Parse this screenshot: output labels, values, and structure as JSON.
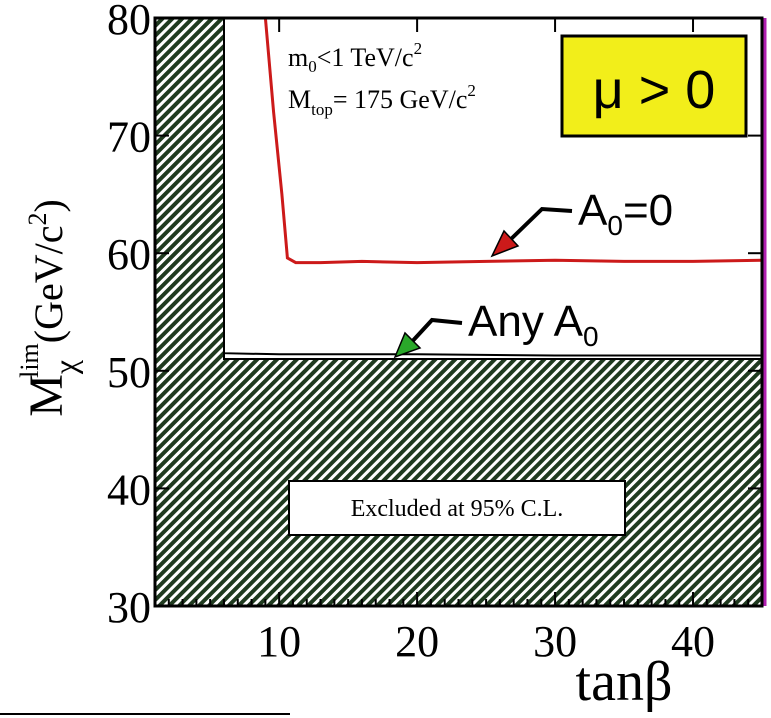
{
  "chart_data": {
    "type": "line",
    "xlabel": "tanβ",
    "ylabel": {
      "base": "M",
      "subscript": "χ",
      "superscript": "lim",
      "unit": "(GeV/c",
      "unit_power": "2",
      "unit_close": ")"
    },
    "xlim": [
      1,
      45
    ],
    "ylim": [
      30,
      80
    ],
    "x_ticks": [
      10,
      20,
      30,
      40
    ],
    "y_ticks": [
      30,
      40,
      50,
      60,
      70,
      80
    ],
    "series": [
      {
        "name": "A0=0",
        "color": "#cc1a1a",
        "x": [
          9.0,
          9.6,
          10.2,
          10.6,
          11.2,
          13,
          16,
          20,
          25,
          30,
          35,
          40,
          45
        ],
        "y": [
          80,
          72,
          65,
          59.6,
          59.2,
          59.2,
          59.3,
          59.2,
          59.3,
          59.4,
          59.3,
          59.3,
          59.4
        ]
      },
      {
        "name": "Any A0",
        "color": "#000000",
        "x": [
          6.0,
          6.0,
          10,
          20,
          30,
          40,
          45
        ],
        "y": [
          80,
          51.5,
          51.4,
          51.4,
          51.3,
          51.3,
          51.3
        ]
      }
    ],
    "excluded_region": {
      "label": "Excluded at 95% C.L.",
      "fill": "#1f3a1f",
      "x": [
        1,
        6.0,
        6.0,
        45,
        45,
        1
      ],
      "y": [
        80,
        80,
        51.0,
        51.0,
        30,
        30
      ]
    },
    "annotations": {
      "line1_left": "m",
      "line1_sub": "0",
      "line1_right": "<1 TeV/c",
      "line1_sup": "2",
      "line2_left": "M",
      "line2_sub": "top",
      "line2_right": "= 175 GeV/c",
      "line2_sup": "2",
      "mu_label": "μ > 0",
      "mu_box_color": "#f2ee1a",
      "label_a0_base": "A",
      "label_a0_sub": "0",
      "label_a0_rest": "=0",
      "label_any_base": "Any A",
      "label_any_sub": "0",
      "arrow_a0_color": "#cc1a1a",
      "arrow_any_color": "#2aa82a"
    }
  }
}
